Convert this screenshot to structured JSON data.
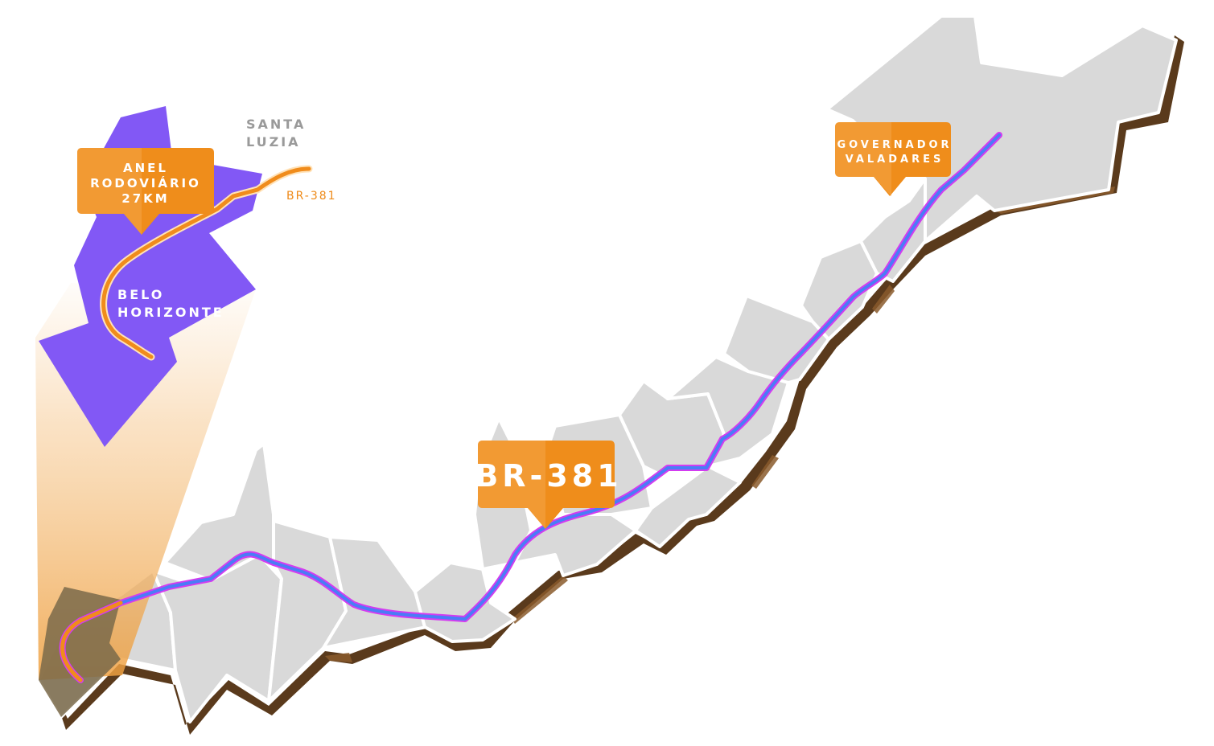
{
  "colors": {
    "region_fill": "#d9d9d9",
    "region_border": "#ffffff",
    "extrusion": "#5a3a1c",
    "extrusion_light": "#8a5a2c",
    "bh_fill": "#8258f5",
    "callout_orange": "#ef8d1b",
    "callout_orange_light": "#f4a444",
    "road_blue": "#4a7cf6",
    "road_magenta": "#d33cf0",
    "anel_orange": "#f08c1c",
    "anel_light": "#ffe2b8",
    "beam": "#f3b160"
  },
  "callouts": {
    "anel": {
      "lines": [
        "ANEL",
        "RODOVIÁRIO",
        "27KM"
      ]
    },
    "br381": {
      "label": "BR-381"
    },
    "valadares": {
      "lines": [
        "GOVERNADOR",
        "VALADARES"
      ]
    }
  },
  "cities": {
    "santa_luzia": {
      "lines": [
        "SANTA",
        "LUZIA"
      ]
    },
    "belo_horizonte": {
      "lines": [
        "BELO",
        "HORIZONTE"
      ]
    }
  },
  "inset_road_label": "BR-381",
  "icons": {
    "callout": "callout-pin-icon"
  }
}
